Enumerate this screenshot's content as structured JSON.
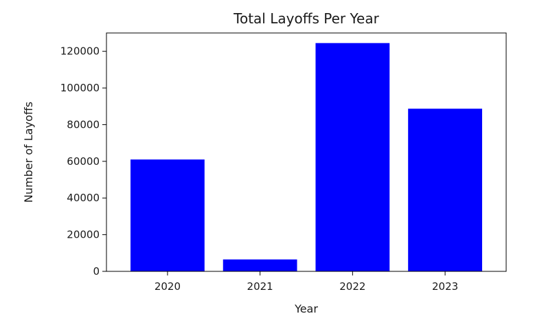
{
  "chart_data": {
    "type": "bar",
    "title": "Total Layoffs Per Year",
    "xlabel": "Year",
    "ylabel": "Number of Layoffs",
    "categories": [
      "2020",
      "2021",
      "2022",
      "2023"
    ],
    "values": [
      61000,
      6500,
      124500,
      88700
    ],
    "ylim": [
      0,
      130000
    ],
    "yticks": [
      0,
      20000,
      40000,
      60000,
      80000,
      100000,
      120000
    ],
    "bar_color": "#0000ff",
    "grid": false,
    "legend": "none"
  }
}
